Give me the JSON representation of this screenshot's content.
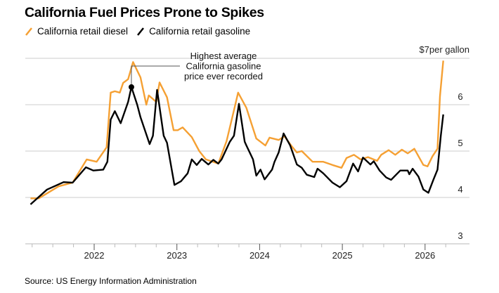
{
  "chart_data": {
    "type": "line",
    "title": "California Fuel Prices Prone to Spikes",
    "source": "Source: US Energy Information Administration",
    "y_unit_label": "$7per gallon",
    "xlabel": "",
    "ylabel": "",
    "ylim": [
      3,
      7
    ],
    "xlim": [
      2021.2,
      2026.28
    ],
    "y_ticks": [
      3,
      4,
      5,
      6
    ],
    "x_ticks": [
      2022,
      2023,
      2024,
      2025,
      2026
    ],
    "x_tick_labels": [
      "2022",
      "2023",
      "2024",
      "2025",
      "2026"
    ],
    "grid": true,
    "legend_position": "top-left",
    "annotation": {
      "lines": [
        "Highest average",
        "California gasoline",
        "price ever recorded"
      ],
      "series": "California retail gasoline",
      "x": 2022.45,
      "y": 6.38
    },
    "series": [
      {
        "name": "California retail diesel",
        "color": "#f5a033",
        "x": [
          2021.23,
          2021.33,
          2021.57,
          2021.74,
          2021.91,
          2022.03,
          2022.15,
          2022.2,
          2022.25,
          2022.31,
          2022.35,
          2022.41,
          2022.47,
          2022.56,
          2022.63,
          2022.66,
          2022.75,
          2022.79,
          2022.88,
          2022.96,
          2023.01,
          2023.07,
          2023.18,
          2023.27,
          2023.35,
          2023.5,
          2023.6,
          2023.69,
          2023.74,
          2023.84,
          2023.9,
          2023.96,
          2024.07,
          2024.12,
          2024.23,
          2024.3,
          2024.39,
          2024.45,
          2024.51,
          2024.64,
          2024.77,
          2024.88,
          2024.99,
          2025.05,
          2025.14,
          2025.22,
          2025.31,
          2025.42,
          2025.47,
          2025.56,
          2025.64,
          2025.72,
          2025.79,
          2025.87,
          2025.98,
          2026.03,
          2026.09,
          2026.15,
          2026.18,
          2026.22
        ],
        "values": [
          3.98,
          3.98,
          4.24,
          4.32,
          4.82,
          4.77,
          5.08,
          6.26,
          6.29,
          6.26,
          6.47,
          6.55,
          6.92,
          6.59,
          6.0,
          6.2,
          6.06,
          6.48,
          6.16,
          5.45,
          5.45,
          5.51,
          5.3,
          5.0,
          4.82,
          4.73,
          5.21,
          5.88,
          6.26,
          5.93,
          5.6,
          5.27,
          5.12,
          5.29,
          5.24,
          5.32,
          5.1,
          4.97,
          5.0,
          4.77,
          4.77,
          4.7,
          4.64,
          4.85,
          4.92,
          4.82,
          4.87,
          4.79,
          4.92,
          5.02,
          4.92,
          5.03,
          4.95,
          5.05,
          4.7,
          4.67,
          4.89,
          5.05,
          6.18,
          6.95
        ]
      },
      {
        "name": "California retail gasoline",
        "color": "#000000",
        "x": [
          2021.23,
          2021.43,
          2021.63,
          2021.74,
          2021.9,
          2021.99,
          2022.11,
          2022.16,
          2022.2,
          2022.25,
          2022.32,
          2022.41,
          2022.45,
          2022.52,
          2022.56,
          2022.67,
          2022.71,
          2022.76,
          2022.84,
          2022.88,
          2022.97,
          2023.05,
          2023.13,
          2023.18,
          2023.24,
          2023.3,
          2023.38,
          2023.44,
          2023.5,
          2023.54,
          2023.64,
          2023.69,
          2023.75,
          2023.82,
          2023.84,
          2023.92,
          2023.96,
          2024.01,
          2024.06,
          2024.15,
          2024.18,
          2024.23,
          2024.29,
          2024.37,
          2024.45,
          2024.51,
          2024.57,
          2024.66,
          2024.7,
          2024.77,
          2024.88,
          2024.97,
          2025.05,
          2025.13,
          2025.19,
          2025.25,
          2025.34,
          2025.38,
          2025.45,
          2025.53,
          2025.59,
          2025.7,
          2025.79,
          2025.81,
          2025.85,
          2025.92,
          2025.98,
          2026.04,
          2026.1,
          2026.15,
          2026.19,
          2026.22
        ],
        "values": [
          3.85,
          4.17,
          4.33,
          4.32,
          4.65,
          4.58,
          4.6,
          4.77,
          5.68,
          5.86,
          5.6,
          6.06,
          6.38,
          6.0,
          5.73,
          5.15,
          5.33,
          6.32,
          5.33,
          5.18,
          4.27,
          4.35,
          4.52,
          4.82,
          4.7,
          4.83,
          4.71,
          4.81,
          4.73,
          4.82,
          5.2,
          5.33,
          6.02,
          5.2,
          5.12,
          4.82,
          4.47,
          4.6,
          4.39,
          4.6,
          4.77,
          4.97,
          5.38,
          5.12,
          4.71,
          4.64,
          4.49,
          4.44,
          4.62,
          4.52,
          4.32,
          4.22,
          4.35,
          4.73,
          4.56,
          4.86,
          4.71,
          4.78,
          4.58,
          4.43,
          4.38,
          4.58,
          4.58,
          4.5,
          4.62,
          4.45,
          4.17,
          4.1,
          4.38,
          4.6,
          5.33,
          5.79
        ]
      }
    ]
  }
}
